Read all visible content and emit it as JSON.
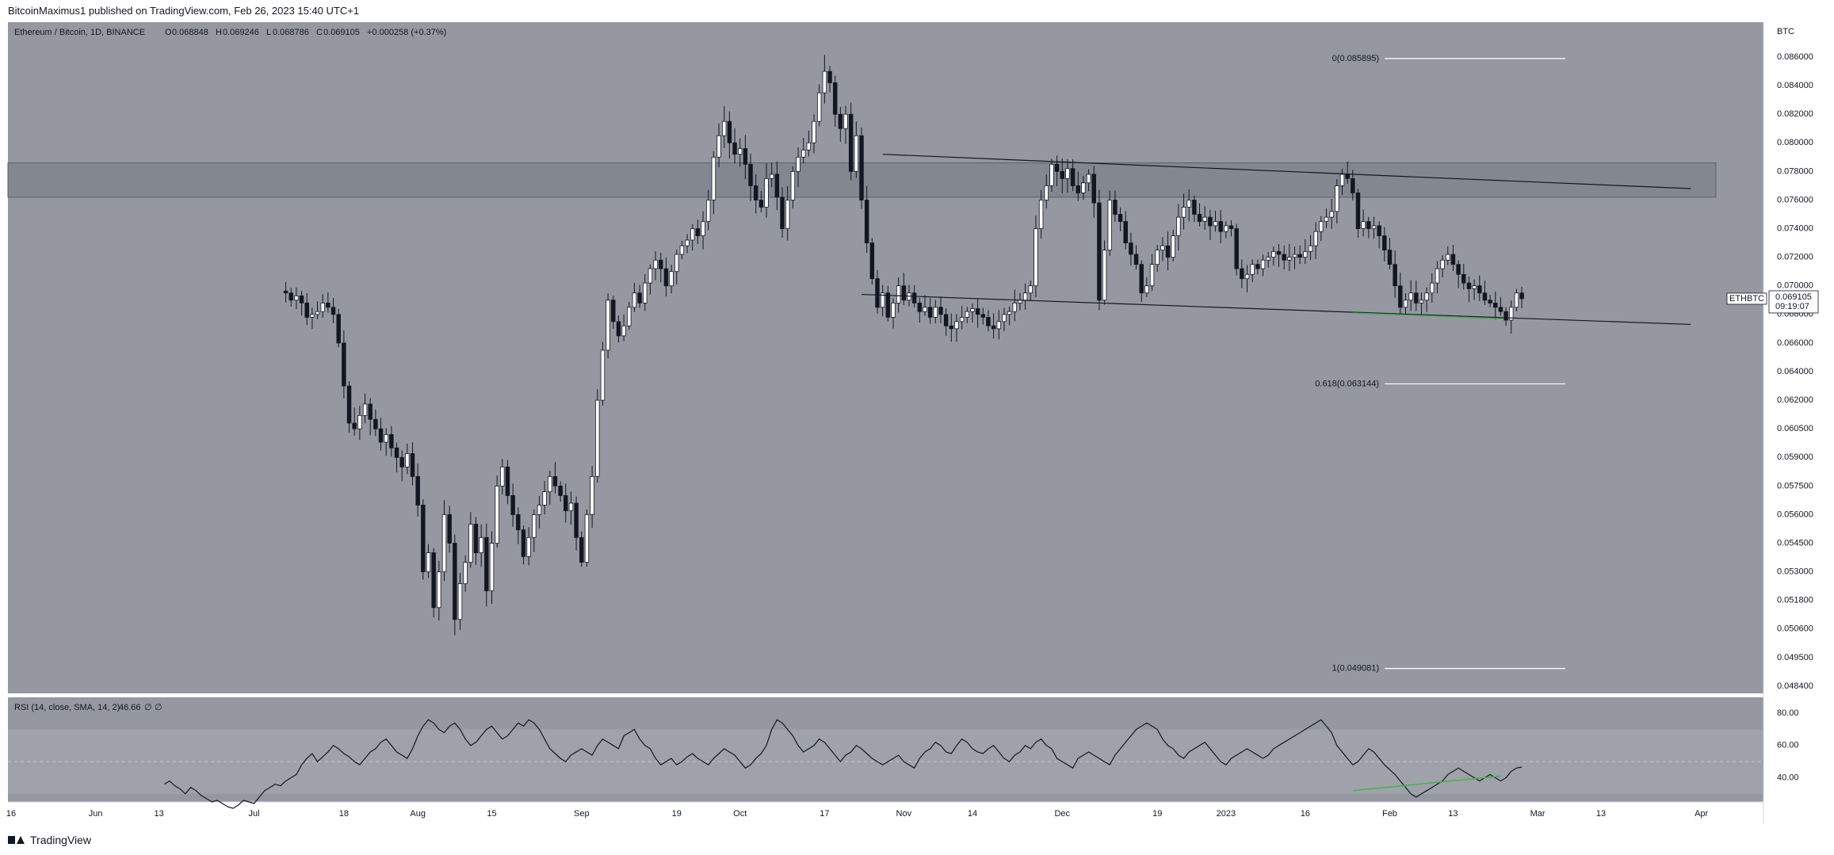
{
  "header": {
    "published_text": "BitcoinMaximus1 published on TradingView.com, Feb 26, 2023 15:40 UTC+1"
  },
  "symbol_legend": {
    "symbol": "Ethereum / Bitcoin, 1D, BINANCE",
    "open_label": "O",
    "open": "0.068848",
    "high_label": "H",
    "high": "0.069246",
    "low_label": "L",
    "low": "0.068786",
    "close_label": "C",
    "close": "0.069105",
    "change": "+0.000258 (+0.37%)"
  },
  "price_axis": {
    "currency": "BTC",
    "ticks": [
      "0.086000",
      "0.084000",
      "0.082000",
      "0.080000",
      "0.078000",
      "0.076000",
      "0.074000",
      "0.072000",
      "0.070000",
      "0.068000",
      "0.066000",
      "0.064000",
      "0.062000",
      "0.060500",
      "0.059000",
      "0.057500",
      "0.056000",
      "0.054500",
      "0.053000",
      "0.051800",
      "0.050600",
      "0.049500",
      "0.048400"
    ],
    "current_symbol": "ETHBTC",
    "current_price": "0.069105",
    "countdown": "09:19:07"
  },
  "fib_levels": [
    {
      "label": "0(0.085895)",
      "value": 0.085895
    },
    {
      "label": "0.618(0.063144)",
      "value": 0.063144
    },
    {
      "label": "1(0.049081)",
      "value": 0.049081
    }
  ],
  "time_axis": {
    "labels": [
      "16",
      "Jun",
      "13",
      "Jul",
      "18",
      "Aug",
      "15",
      "Sep",
      "19",
      "Oct",
      "17",
      "Nov",
      "14",
      "Dec",
      "19",
      "2023",
      "16",
      "Feb",
      "13",
      "Mar",
      "13",
      "Apr"
    ]
  },
  "rsi": {
    "label": "RSI (14, close, SMA, 14, 2)",
    "value": "46.66",
    "extra1": "∅",
    "extra2": "∅",
    "ticks": [
      "80.00",
      "60.00",
      "40.00"
    ]
  },
  "footer": {
    "brand": "TradingView"
  },
  "colors": {
    "panel_bg": "#9598a1",
    "resistance_zone": "#787b86",
    "divergence": "#4caf50",
    "candle_up": "#ffffff",
    "candle_down": "#131722"
  },
  "chart_data": {
    "type": "candlestick",
    "title": "Ethereum / Bitcoin, 1D, BINANCE",
    "x_range": [
      "2022-05-16",
      "2023-04-03"
    ],
    "price_range": [
      0.0484,
      0.0875
    ],
    "resistance_zone": [
      0.0762,
      0.0786
    ],
    "last_date": "2023-02-26",
    "closes": [
      0.0695,
      0.069,
      0.0693,
      0.0688,
      0.0678,
      0.068,
      0.0682,
      0.0688,
      0.0685,
      0.068,
      0.066,
      0.063,
      0.0608,
      0.0605,
      0.0612,
      0.0618,
      0.061,
      0.0605,
      0.0598,
      0.0602,
      0.0595,
      0.059,
      0.0585,
      0.0592,
      0.058,
      0.0565,
      0.053,
      0.054,
      0.0515,
      0.053,
      0.056,
      0.0545,
      0.051,
      0.0525,
      0.0535,
      0.0555,
      0.054,
      0.0548,
      0.0522,
      0.0545,
      0.0575,
      0.0585,
      0.057,
      0.056,
      0.0552,
      0.0538,
      0.0548,
      0.056,
      0.0565,
      0.0572,
      0.058,
      0.0575,
      0.057,
      0.0562,
      0.0566,
      0.0548,
      0.0535,
      0.056,
      0.058,
      0.062,
      0.0655,
      0.069,
      0.0675,
      0.0665,
      0.0672,
      0.0685,
      0.0695,
      0.0688,
      0.0702,
      0.0712,
      0.0718,
      0.0712,
      0.07,
      0.071,
      0.0722,
      0.0728,
      0.0732,
      0.074,
      0.0735,
      0.0745,
      0.076,
      0.079,
      0.0805,
      0.0815,
      0.08,
      0.0792,
      0.0796,
      0.0785,
      0.077,
      0.076,
      0.0755,
      0.0775,
      0.0778,
      0.0762,
      0.074,
      0.076,
      0.078,
      0.079,
      0.0795,
      0.08,
      0.0815,
      0.0835,
      0.085,
      0.0842,
      0.082,
      0.081,
      0.082,
      0.078,
      0.0805,
      0.076,
      0.073,
      0.0705,
      0.0685,
      0.0695,
      0.0678,
      0.0688,
      0.07,
      0.069,
      0.0695,
      0.0688,
      0.0682,
      0.0685,
      0.0678,
      0.0685,
      0.068,
      0.0672,
      0.067,
      0.0675,
      0.0678,
      0.0682,
      0.0684,
      0.068,
      0.0678,
      0.0672,
      0.067,
      0.0675,
      0.068,
      0.0682,
      0.0688,
      0.069,
      0.0695,
      0.07,
      0.074,
      0.076,
      0.077,
      0.0785,
      0.078,
      0.0775,
      0.0782,
      0.077,
      0.0765,
      0.0772,
      0.0778,
      0.0758,
      0.069,
      0.0725,
      0.076,
      0.075,
      0.0745,
      0.073,
      0.0722,
      0.0715,
      0.0695,
      0.07,
      0.0715,
      0.0725,
      0.0728,
      0.072,
      0.0735,
      0.0748,
      0.0755,
      0.076,
      0.075,
      0.0745,
      0.0748,
      0.0742,
      0.0745,
      0.0738,
      0.0742,
      0.074,
      0.0712,
      0.0705,
      0.0708,
      0.0715,
      0.0712,
      0.0718,
      0.072,
      0.0724,
      0.0722,
      0.0718,
      0.072,
      0.0722,
      0.072,
      0.0724,
      0.0728,
      0.0738,
      0.0745,
      0.0748,
      0.0752,
      0.077,
      0.0778,
      0.0775,
      0.0765,
      0.074,
      0.0745,
      0.074,
      0.0742,
      0.0735,
      0.0725,
      0.0715,
      0.07,
      0.0685,
      0.069,
      0.0695,
      0.0688,
      0.069,
      0.0695,
      0.0702,
      0.0712,
      0.0718,
      0.0722,
      0.0715,
      0.0708,
      0.0702,
      0.0698,
      0.07,
      0.0695,
      0.069,
      0.0688,
      0.0685,
      0.0682,
      0.0676,
      0.0685,
      0.0695,
      0.0691
    ],
    "trendlines": [
      {
        "name": "channel-top",
        "from": [
          "2022-10-28",
          0.0792
        ],
        "to": [
          "2023-03-30",
          0.0768
        ]
      },
      {
        "name": "channel-bottom",
        "from": [
          "2022-10-24",
          0.0694
        ],
        "to": [
          "2023-03-30",
          0.0673
        ]
      }
    ],
    "bullish_divergence": {
      "price": {
        "from": [
          "2023-01-25",
          0.0681
        ],
        "to": [
          "2023-02-22",
          0.0677
        ]
      },
      "rsi": {
        "from": [
          "2023-01-25",
          32
        ],
        "to": [
          "2023-02-22",
          41
        ]
      }
    },
    "rsi_values": [
      36,
      38,
      35,
      33,
      30,
      34,
      32,
      29,
      27,
      25,
      26,
      24,
      22,
      21,
      23,
      26,
      25,
      24,
      28,
      32,
      34,
      36,
      35,
      38,
      40,
      42,
      48,
      52,
      55,
      50,
      53,
      56,
      60,
      58,
      55,
      53,
      50,
      48,
      52,
      56,
      58,
      62,
      64,
      60,
      56,
      54,
      52,
      58,
      66,
      72,
      76,
      74,
      70,
      68,
      72,
      74,
      70,
      64,
      60,
      62,
      66,
      70,
      72,
      68,
      64,
      66,
      70,
      74,
      72,
      76,
      74,
      70,
      64,
      58,
      55,
      52,
      50,
      54,
      56,
      58,
      56,
      54,
      60,
      64,
      62,
      60,
      58,
      66,
      68,
      70,
      64,
      60,
      58,
      52,
      48,
      50,
      52,
      48,
      50,
      53,
      55,
      52,
      50,
      48,
      52,
      55,
      58,
      56,
      54,
      50,
      46,
      48,
      52,
      55,
      60,
      70,
      76,
      74,
      70,
      66,
      60,
      56,
      58,
      60,
      64,
      62,
      58,
      54,
      50,
      54,
      56,
      60,
      58,
      55,
      52,
      50,
      48,
      50,
      52,
      54,
      50,
      48,
      46,
      52,
      56,
      58,
      62,
      60,
      56,
      55,
      60,
      64,
      62,
      58,
      56,
      55,
      58,
      60,
      56,
      52,
      50,
      54,
      56,
      60,
      58,
      62,
      64,
      60,
      58,
      52,
      50,
      48,
      46,
      52,
      54,
      56,
      54,
      52,
      50,
      48,
      54,
      58,
      62,
      66,
      70,
      72,
      74,
      72,
      70,
      64,
      60,
      58,
      54,
      52,
      56,
      58,
      60,
      62,
      58,
      54,
      50,
      48,
      52,
      54,
      56,
      58,
      56,
      54,
      52,
      54,
      58,
      60,
      62,
      64,
      66,
      68,
      70,
      72,
      74,
      76,
      72,
      68,
      60,
      56,
      52,
      48,
      50,
      54,
      58,
      56,
      52,
      48,
      45,
      42,
      38,
      34,
      30,
      28,
      30,
      32,
      34,
      36,
      38,
      42,
      44,
      46,
      44,
      42,
      40,
      38,
      40,
      42,
      40,
      38,
      40,
      44,
      46,
      46.66
    ]
  }
}
